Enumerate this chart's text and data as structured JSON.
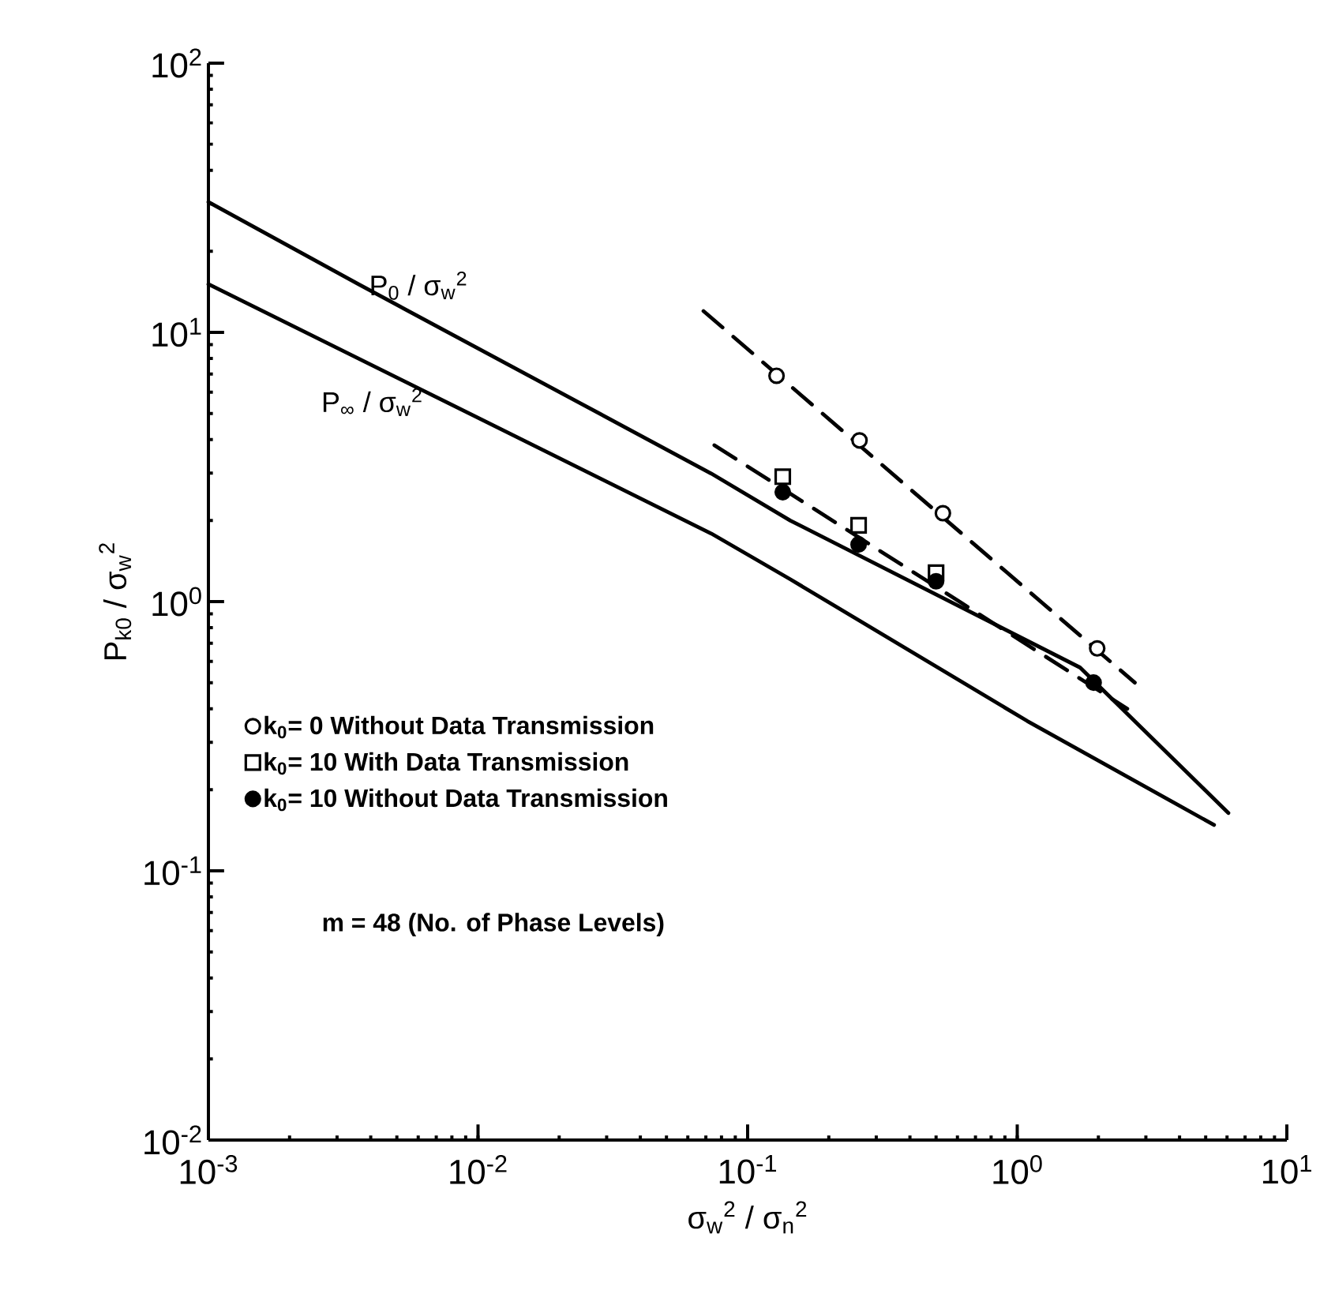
{
  "chart_data": {
    "type": "line",
    "xlabel": "σ$_{w}$$^{2}$ / σ$_{n}$$^{2}$",
    "ylabel": "P$_{k0}$ / σ$_{w}$$^{2}$",
    "log": "xy",
    "xlim": [
      0.001,
      10
    ],
    "ylim": [
      0.01,
      100
    ],
    "xticks": [
      {
        "value": 0.001,
        "label": "10$^{-3}$"
      },
      {
        "value": 0.01,
        "label": "10$^{-2}$"
      },
      {
        "value": 0.1,
        "label": "10$^{-1}$"
      },
      {
        "value": 1,
        "label": "10$^{0}$"
      },
      {
        "value": 10,
        "label": "10$^{1}$"
      }
    ],
    "yticks": [
      {
        "value": 0.01,
        "label": "10$^{-2}$"
      },
      {
        "value": 0.1,
        "label": "10$^{-1}$"
      },
      {
        "value": 1,
        "label": "10$^{0}$"
      },
      {
        "value": 10,
        "label": "10$^{1}$"
      },
      {
        "value": 100,
        "label": "10$^{2}$"
      }
    ],
    "grid": false,
    "legend": "left",
    "annotations": [
      "m = 48 (No. of Phase Levels)"
    ],
    "series": [
      {
        "name": "P$_{0}$ / σ$_{w}$$^{2}$",
        "color": "#000000",
        "line_style": "solid",
        "marker": "none",
        "x": [
          0.001,
          0.0036,
          0.0733,
          0.144,
          1.71,
          6.07
        ],
        "values": [
          30.5,
          15.1,
          2.99,
          2.0,
          0.569,
          0.164
        ]
      },
      {
        "name": "P$_{∞}$ / σ$_{w}$$^{2}$",
        "color": "#000000",
        "line_style": "solid",
        "marker": "none",
        "x": [
          0.001,
          0.00966,
          0.0733,
          0.144,
          1.09,
          5.37
        ],
        "values": [
          15.1,
          4.9,
          1.79,
          1.21,
          0.36,
          0.148
        ]
      },
      {
        "color": "#000000",
        "line_style": "dashed",
        "marker": "none",
        "x": [
          0.0686,
          2.73
        ],
        "values": [
          12.0,
          0.5
        ]
      },
      {
        "color": "#000000",
        "line_style": "dashed",
        "marker": "none",
        "x": [
          0.0753,
          2.56
        ],
        "values": [
          3.81,
          0.4
        ]
      },
      {
        "name": "k$_{0}$= 0  Without Data Transmission",
        "type": "scatter",
        "color": "#ffffff",
        "marker": "circle",
        "x": [
          0.128,
          0.26,
          0.53,
          1.98
        ],
        "values": [
          6.9,
          3.97,
          2.13,
          0.67
        ]
      },
      {
        "name": "k$_{0}$= 10  With Data Transmission",
        "type": "scatter",
        "color": "#ffffff",
        "marker": "square",
        "x": [
          0.135,
          0.258,
          0.5
        ],
        "values": [
          2.91,
          1.92,
          1.28
        ]
      },
      {
        "name": "k$_{0}$= 10  Without Data Transmission",
        "type": "scatter",
        "color": "#000000",
        "marker": "circle",
        "x": [
          0.135,
          0.258,
          0.5,
          1.92
        ],
        "values": [
          2.55,
          1.63,
          1.19,
          0.5
        ]
      }
    ]
  }
}
